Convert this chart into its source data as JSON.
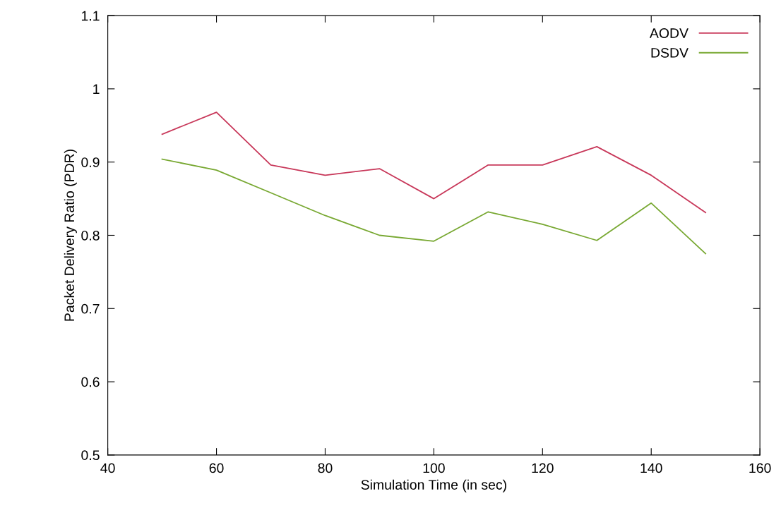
{
  "chart_data": {
    "type": "line",
    "xlabel": "Simulation Time (in sec)",
    "ylabel": "Packet Delivery Ratio (PDR)",
    "x": [
      50,
      60,
      70,
      80,
      90,
      100,
      110,
      120,
      130,
      140,
      150
    ],
    "series": [
      {
        "name": "AODV",
        "color": "#c8385a",
        "values": [
          0.938,
          0.968,
          0.896,
          0.882,
          0.891,
          0.85,
          0.896,
          0.896,
          0.921,
          0.882,
          0.831
        ]
      },
      {
        "name": "DSDV",
        "color": "#78a832",
        "values": [
          0.904,
          0.889,
          0.858,
          0.827,
          0.8,
          0.792,
          0.832,
          0.815,
          0.793,
          0.844,
          0.775
        ]
      }
    ],
    "xlim": [
      40,
      160
    ],
    "xticks": [
      40,
      60,
      80,
      100,
      120,
      140,
      160
    ],
    "ylim": [
      0.5,
      1.1
    ],
    "yticks": [
      0.5,
      0.6,
      0.7,
      0.8,
      0.9,
      1,
      1.1
    ],
    "legend": "top right",
    "marker": "none",
    "line_style": "solid",
    "grid": false
  }
}
